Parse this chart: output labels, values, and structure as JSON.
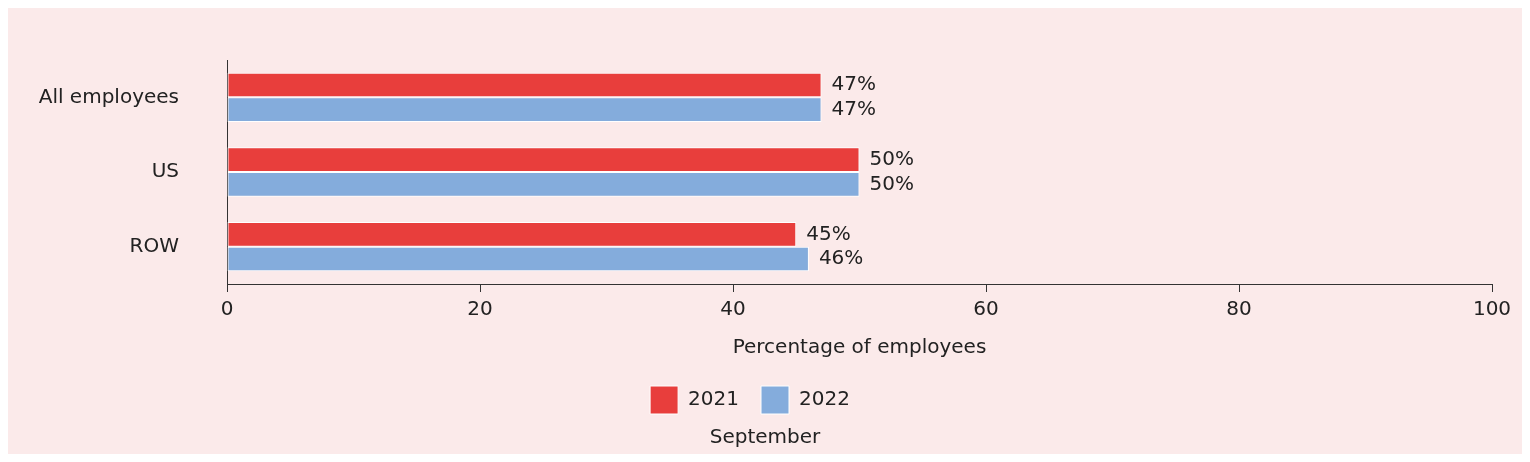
{
  "chart_data": {
    "type": "bar",
    "orientation": "horizontal",
    "categories": [
      "All employees",
      "US",
      "ROW"
    ],
    "series": [
      {
        "name": "2021",
        "color": "#e83e3c",
        "values": [
          47,
          50,
          45
        ],
        "value_labels": [
          "47%",
          "50%",
          "45%"
        ]
      },
      {
        "name": "2022",
        "color": "#84acdc",
        "values": [
          47,
          50,
          46
        ],
        "value_labels": [
          "47%",
          "50%",
          "46%"
        ]
      }
    ],
    "xlabel": "Percentage of employees",
    "xlim": [
      0,
      100
    ],
    "xticks": [
      0,
      20,
      40,
      60,
      80,
      100
    ],
    "grid": false,
    "legend": "bottom",
    "annotations": [
      "September"
    ]
  }
}
